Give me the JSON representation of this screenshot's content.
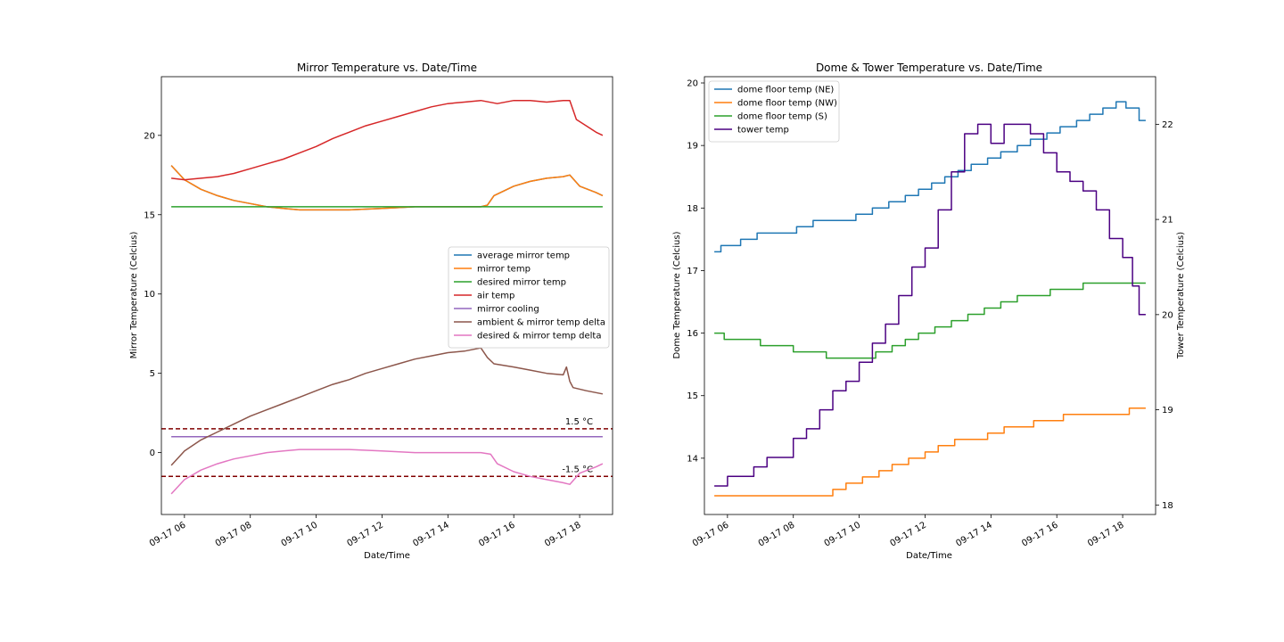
{
  "chart_data": [
    {
      "type": "line",
      "title": "Mirror Temperature vs. Date/Time",
      "xlabel": "Date/Time",
      "ylabel": "Mirror Temperature (Celcius)",
      "xlim": [
        5.3,
        19.0
      ],
      "ylim": [
        -3.9,
        23.7
      ],
      "x_ticks": [
        {
          "v": 6,
          "label": "09-17 06"
        },
        {
          "v": 8,
          "label": "09-17 08"
        },
        {
          "v": 10,
          "label": "09-17 10"
        },
        {
          "v": 12,
          "label": "09-17 12"
        },
        {
          "v": 14,
          "label": "09-17 14"
        },
        {
          "v": 16,
          "label": "09-17 16"
        },
        {
          "v": 18,
          "label": "09-17 18"
        }
      ],
      "y_ticks": [
        0,
        5,
        10,
        15,
        20
      ],
      "grid": false,
      "legend": "center-right",
      "series": [
        {
          "name": "average mirror temp",
          "color": "#1f77b4",
          "x": [
            5.6,
            6.0,
            6.5,
            7.0,
            7.5,
            8.0,
            8.5,
            9.0,
            9.5,
            10.0,
            11.0,
            12.0,
            13.0,
            14.0,
            15.0,
            15.2,
            15.4,
            16.0,
            16.5,
            17.0,
            17.5,
            17.7,
            18.0,
            18.5,
            18.7
          ],
          "y": [
            18.1,
            17.2,
            16.6,
            16.2,
            15.9,
            15.7,
            15.5,
            15.4,
            15.3,
            15.3,
            15.3,
            15.4,
            15.5,
            15.5,
            15.5,
            15.6,
            16.2,
            16.8,
            17.1,
            17.3,
            17.4,
            17.5,
            16.8,
            16.4,
            16.2
          ]
        },
        {
          "name": "mirror temp",
          "color": "#ff7f0e",
          "x": [
            5.6,
            6.0,
            6.5,
            7.0,
            7.5,
            8.0,
            8.5,
            9.0,
            9.5,
            10.0,
            11.0,
            12.0,
            13.0,
            14.0,
            15.0,
            15.2,
            15.4,
            16.0,
            16.5,
            17.0,
            17.5,
            17.7,
            18.0,
            18.5,
            18.7
          ],
          "y": [
            18.1,
            17.2,
            16.6,
            16.2,
            15.9,
            15.7,
            15.5,
            15.4,
            15.3,
            15.3,
            15.3,
            15.4,
            15.5,
            15.5,
            15.5,
            15.6,
            16.2,
            16.8,
            17.1,
            17.3,
            17.4,
            17.5,
            16.8,
            16.4,
            16.2
          ]
        },
        {
          "name": "desired mirror temp",
          "color": "#2ca02c",
          "x": [
            5.6,
            18.7
          ],
          "y": [
            15.5,
            15.5
          ]
        },
        {
          "name": "air temp",
          "color": "#d62728",
          "x": [
            5.6,
            6.0,
            6.5,
            7.0,
            7.5,
            8.0,
            8.5,
            9.0,
            9.5,
            10.0,
            10.5,
            11.0,
            11.5,
            12.0,
            12.5,
            13.0,
            13.5,
            14.0,
            14.5,
            15.0,
            15.5,
            16.0,
            16.5,
            17.0,
            17.5,
            17.7,
            17.9,
            18.2,
            18.5,
            18.7
          ],
          "y": [
            17.3,
            17.2,
            17.3,
            17.4,
            17.6,
            17.9,
            18.2,
            18.5,
            18.9,
            19.3,
            19.8,
            20.2,
            20.6,
            20.9,
            21.2,
            21.5,
            21.8,
            22.0,
            22.1,
            22.2,
            22.0,
            22.2,
            22.2,
            22.1,
            22.2,
            22.2,
            21.0,
            20.6,
            20.2,
            20.0
          ]
        },
        {
          "name": "mirror cooling",
          "color": "#9467bd",
          "x": [
            5.6,
            18.7
          ],
          "y": [
            1.0,
            1.0
          ]
        },
        {
          "name": "ambient & mirror temp delta",
          "color": "#8c564b",
          "x": [
            5.6,
            6.0,
            6.5,
            7.0,
            7.5,
            8.0,
            8.5,
            9.0,
            9.5,
            10.0,
            10.5,
            11.0,
            11.5,
            12.0,
            12.5,
            13.0,
            13.5,
            14.0,
            14.5,
            15.0,
            15.2,
            15.4,
            16.0,
            16.5,
            17.0,
            17.5,
            17.6,
            17.7,
            17.8,
            18.2,
            18.7
          ],
          "y": [
            -0.8,
            0.1,
            0.8,
            1.3,
            1.8,
            2.3,
            2.7,
            3.1,
            3.5,
            3.9,
            4.3,
            4.6,
            5.0,
            5.3,
            5.6,
            5.9,
            6.1,
            6.3,
            6.4,
            6.6,
            6.0,
            5.6,
            5.4,
            5.2,
            5.0,
            4.9,
            5.4,
            4.5,
            4.1,
            3.9,
            3.7
          ]
        },
        {
          "name": "desired & mirror temp delta",
          "color": "#e377c2",
          "x": [
            5.6,
            6.0,
            6.5,
            7.0,
            7.5,
            8.0,
            8.5,
            9.0,
            9.5,
            10.0,
            11.0,
            12.0,
            13.0,
            14.0,
            15.0,
            15.3,
            15.5,
            16.0,
            16.5,
            17.0,
            17.5,
            17.7,
            18.0,
            18.5,
            18.7
          ],
          "y": [
            -2.6,
            -1.7,
            -1.1,
            -0.7,
            -0.4,
            -0.2,
            0.0,
            0.1,
            0.2,
            0.2,
            0.2,
            0.1,
            0.0,
            0.0,
            0.0,
            -0.1,
            -0.7,
            -1.2,
            -1.5,
            -1.7,
            -1.9,
            -2.0,
            -1.3,
            -0.9,
            -0.7
          ]
        }
      ],
      "hlines": [
        {
          "y": 1.5,
          "label": "1.5 °C",
          "color": "#800000"
        },
        {
          "y": -1.5,
          "label": "-1.5 °C",
          "color": "#800000"
        }
      ]
    },
    {
      "type": "line",
      "title": "Dome & Tower Temperature vs. Date/Time",
      "xlabel": "Date/Time",
      "ylabel": "Dome Temperature (Celcius)",
      "ylabel_right": "Tower Temperature (Celcius)",
      "xlim": [
        5.3,
        19.0
      ],
      "ylim": [
        13.1,
        20.1
      ],
      "ylim_right": [
        17.9,
        22.5
      ],
      "x_ticks": [
        {
          "v": 6,
          "label": "09-17 06"
        },
        {
          "v": 8,
          "label": "09-17 08"
        },
        {
          "v": 10,
          "label": "09-17 10"
        },
        {
          "v": 12,
          "label": "09-17 12"
        },
        {
          "v": 14,
          "label": "09-17 14"
        },
        {
          "v": 16,
          "label": "09-17 16"
        },
        {
          "v": 18,
          "label": "09-17 18"
        }
      ],
      "y_ticks": [
        14,
        15,
        16,
        17,
        18,
        19,
        20
      ],
      "y_ticks_right": [
        18,
        19,
        20,
        21,
        22
      ],
      "grid": false,
      "legend": "upper-left",
      "series": [
        {
          "name": "dome floor temp (NE)",
          "color": "#1f77b4",
          "axis": "left",
          "step": true,
          "x": [
            5.6,
            5.8,
            6.4,
            6.9,
            7.5,
            8.1,
            8.6,
            9.2,
            9.9,
            10.4,
            10.9,
            11.4,
            11.8,
            12.2,
            12.6,
            13.0,
            13.4,
            13.9,
            14.3,
            14.8,
            15.2,
            15.7,
            16.1,
            16.6,
            17.0,
            17.4,
            17.8,
            18.1,
            18.5,
            18.7
          ],
          "y": [
            17.3,
            17.4,
            17.5,
            17.6,
            17.6,
            17.7,
            17.8,
            17.8,
            17.9,
            18.0,
            18.1,
            18.2,
            18.3,
            18.4,
            18.5,
            18.6,
            18.7,
            18.8,
            18.9,
            19.0,
            19.1,
            19.2,
            19.3,
            19.4,
            19.5,
            19.6,
            19.7,
            19.6,
            19.4,
            19.4
          ]
        },
        {
          "name": "dome floor temp (NW)",
          "color": "#ff7f0e",
          "axis": "left",
          "step": true,
          "x": [
            5.6,
            9.2,
            9.6,
            10.1,
            10.6,
            11.0,
            11.5,
            12.0,
            12.4,
            12.9,
            13.4,
            13.9,
            14.4,
            14.9,
            15.3,
            15.8,
            16.2,
            16.8,
            17.3,
            17.7,
            18.2,
            18.7
          ],
          "y": [
            13.4,
            13.5,
            13.6,
            13.7,
            13.8,
            13.9,
            14.0,
            14.1,
            14.2,
            14.3,
            14.3,
            14.4,
            14.5,
            14.5,
            14.6,
            14.6,
            14.7,
            14.7,
            14.7,
            14.7,
            14.8,
            14.8
          ]
        },
        {
          "name": "dome floor temp (S)",
          "color": "#2ca02c",
          "axis": "left",
          "step": true,
          "x": [
            5.6,
            5.9,
            6.5,
            7.0,
            7.5,
            8.0,
            8.5,
            9.0,
            9.5,
            10.0,
            10.5,
            11.0,
            11.4,
            11.8,
            12.3,
            12.8,
            13.3,
            13.8,
            14.3,
            14.8,
            15.3,
            15.8,
            16.3,
            16.8,
            17.3,
            17.7,
            18.2,
            18.7
          ],
          "y": [
            16.0,
            15.9,
            15.9,
            15.8,
            15.8,
            15.7,
            15.7,
            15.6,
            15.6,
            15.6,
            15.7,
            15.8,
            15.9,
            16.0,
            16.1,
            16.2,
            16.3,
            16.4,
            16.5,
            16.6,
            16.6,
            16.7,
            16.7,
            16.8,
            16.8,
            16.8,
            16.8,
            16.8
          ]
        },
        {
          "name": "tower temp",
          "color": "#4b0082",
          "axis": "right",
          "step": true,
          "x": [
            5.6,
            6.0,
            6.4,
            6.8,
            7.2,
            7.6,
            8.0,
            8.4,
            8.8,
            9.2,
            9.6,
            10.0,
            10.4,
            10.8,
            11.2,
            11.6,
            12.0,
            12.4,
            12.8,
            13.2,
            13.6,
            14.0,
            14.4,
            14.8,
            15.2,
            15.6,
            16.0,
            16.4,
            16.8,
            17.2,
            17.6,
            18.0,
            18.3,
            18.5,
            18.7
          ],
          "y": [
            18.2,
            18.3,
            18.3,
            18.4,
            18.5,
            18.5,
            18.7,
            18.8,
            19.0,
            19.2,
            19.3,
            19.5,
            19.7,
            19.9,
            20.2,
            20.5,
            20.7,
            21.1,
            21.5,
            21.9,
            22.0,
            21.8,
            22.0,
            22.0,
            21.9,
            21.7,
            21.5,
            21.4,
            21.3,
            21.1,
            20.8,
            20.6,
            20.3,
            20.0,
            20.0
          ]
        }
      ]
    }
  ]
}
